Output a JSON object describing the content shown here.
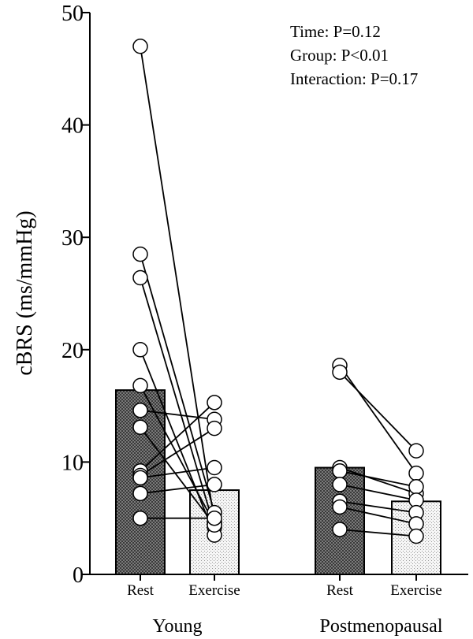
{
  "chart_data": {
    "type": "bar",
    "ylabel": "cBRS (ms/mmHg)",
    "ylim": [
      0,
      50
    ],
    "yticks": [
      0,
      10,
      20,
      30,
      40,
      50
    ],
    "groups": [
      {
        "name": "Young",
        "conditions": [
          "Rest",
          "Exercise"
        ],
        "bar_means": [
          16.4,
          7.5
        ],
        "pairs": [
          [
            47.0,
            4.7
          ],
          [
            28.5,
            5.5
          ],
          [
            26.4,
            4.2
          ],
          [
            20.0,
            3.5
          ],
          [
            16.8,
            4.5
          ],
          [
            14.6,
            13.8
          ],
          [
            13.1,
            4.4
          ],
          [
            9.2,
            15.3
          ],
          [
            8.8,
            13.0
          ],
          [
            8.6,
            9.5
          ],
          [
            7.2,
            8.0
          ],
          [
            5.0,
            5.0
          ]
        ]
      },
      {
        "name": "Postmenopausal",
        "conditions": [
          "Rest",
          "Exercise"
        ],
        "bar_means": [
          9.5,
          6.5
        ],
        "pairs": [
          [
            18.6,
            9.0
          ],
          [
            18.0,
            11.0
          ],
          [
            9.5,
            7.2
          ],
          [
            9.2,
            7.8
          ],
          [
            8.0,
            6.6
          ],
          [
            6.5,
            5.5
          ],
          [
            6.0,
            4.5
          ],
          [
            4.0,
            3.4
          ]
        ]
      }
    ],
    "annotations": [
      "Time: P=0.12",
      "Group: P<0.01",
      "Interaction: P=0.17"
    ]
  }
}
